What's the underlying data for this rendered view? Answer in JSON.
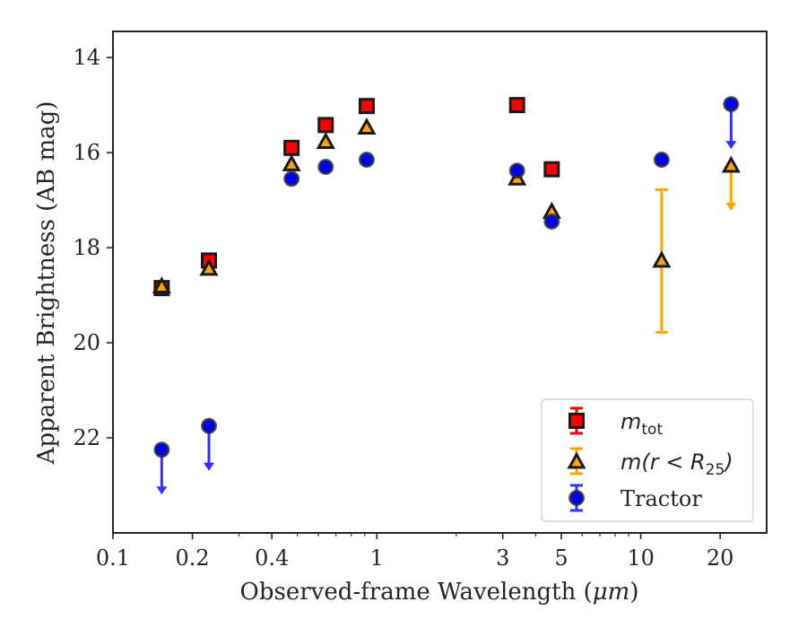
{
  "chart_data": {
    "type": "scatter",
    "xlabel_prefix": "Observed-frame Wavelength (",
    "xlabel_unit": "μm",
    "xlabel_suffix": ")",
    "ylabel": "Apparent Brightness (AB mag)",
    "x_scale": "log",
    "xlim": [
      0.1,
      30
    ],
    "ylim": [
      24.0,
      13.45
    ],
    "y_inverted": true,
    "grid": false,
    "legend_position": "lower-right",
    "x_ticks": [
      {
        "value": 0.1,
        "label": "0.1"
      },
      {
        "value": 0.2,
        "label": "0.2"
      },
      {
        "value": 0.4,
        "label": "0.4"
      },
      {
        "value": 1,
        "label": "1"
      },
      {
        "value": 3,
        "label": "3"
      },
      {
        "value": 5,
        "label": "5"
      },
      {
        "value": 10,
        "label": "10"
      },
      {
        "value": 20,
        "label": "20"
      }
    ],
    "y_ticks": [
      {
        "value": 14,
        "label": "14"
      },
      {
        "value": 16,
        "label": "16"
      },
      {
        "value": 18,
        "label": "18"
      },
      {
        "value": 20,
        "label": "20"
      },
      {
        "value": 22,
        "label": "22"
      }
    ],
    "series": [
      {
        "name": "m_tot",
        "marker": "square",
        "color": "#ff0000",
        "edge_color": "#1a1a1a",
        "points": [
          {
            "x": 0.153,
            "y": 18.85
          },
          {
            "x": 0.231,
            "y": 18.27
          },
          {
            "x": 0.475,
            "y": 15.9
          },
          {
            "x": 0.64,
            "y": 15.42
          },
          {
            "x": 0.915,
            "y": 15.02
          },
          {
            "x": 3.4,
            "y": 15.0
          },
          {
            "x": 4.6,
            "y": 16.35
          }
        ]
      },
      {
        "name": "m(r < R_25)",
        "marker": "triangle",
        "color": "#ffa500",
        "edge_color": "#1a1a1a",
        "points": [
          {
            "x": 0.153,
            "y": 18.82
          },
          {
            "x": 0.231,
            "y": 18.45
          },
          {
            "x": 0.475,
            "y": 16.25
          },
          {
            "x": 0.64,
            "y": 15.78
          },
          {
            "x": 0.915,
            "y": 15.48
          },
          {
            "x": 3.4,
            "y": 16.55
          },
          {
            "x": 4.6,
            "y": 17.25
          },
          {
            "x": 12.0,
            "y": 18.28,
            "err": 1.5
          },
          {
            "x": 22.0,
            "y": 16.28,
            "upper_limit": true
          }
        ]
      },
      {
        "name": "Tractor",
        "marker": "circle",
        "color": "#0000ff",
        "edge_color": "#3a3a3a",
        "points": [
          {
            "x": 0.153,
            "y": 22.25,
            "upper_limit": true
          },
          {
            "x": 0.231,
            "y": 21.75,
            "upper_limit": true
          },
          {
            "x": 0.475,
            "y": 16.55
          },
          {
            "x": 0.64,
            "y": 16.3
          },
          {
            "x": 0.915,
            "y": 16.15
          },
          {
            "x": 3.4,
            "y": 16.38
          },
          {
            "x": 4.6,
            "y": 17.45
          },
          {
            "x": 12.0,
            "y": 16.15
          },
          {
            "x": 22.0,
            "y": 14.98,
            "upper_limit": true
          }
        ]
      }
    ],
    "legend": [
      {
        "series": 0,
        "base": "m",
        "sub": "tot",
        "suffix": ""
      },
      {
        "series": 1,
        "base": "m(r < R",
        "sub": "25",
        "suffix": ")"
      },
      {
        "series": 2,
        "text": "Tractor"
      }
    ]
  }
}
